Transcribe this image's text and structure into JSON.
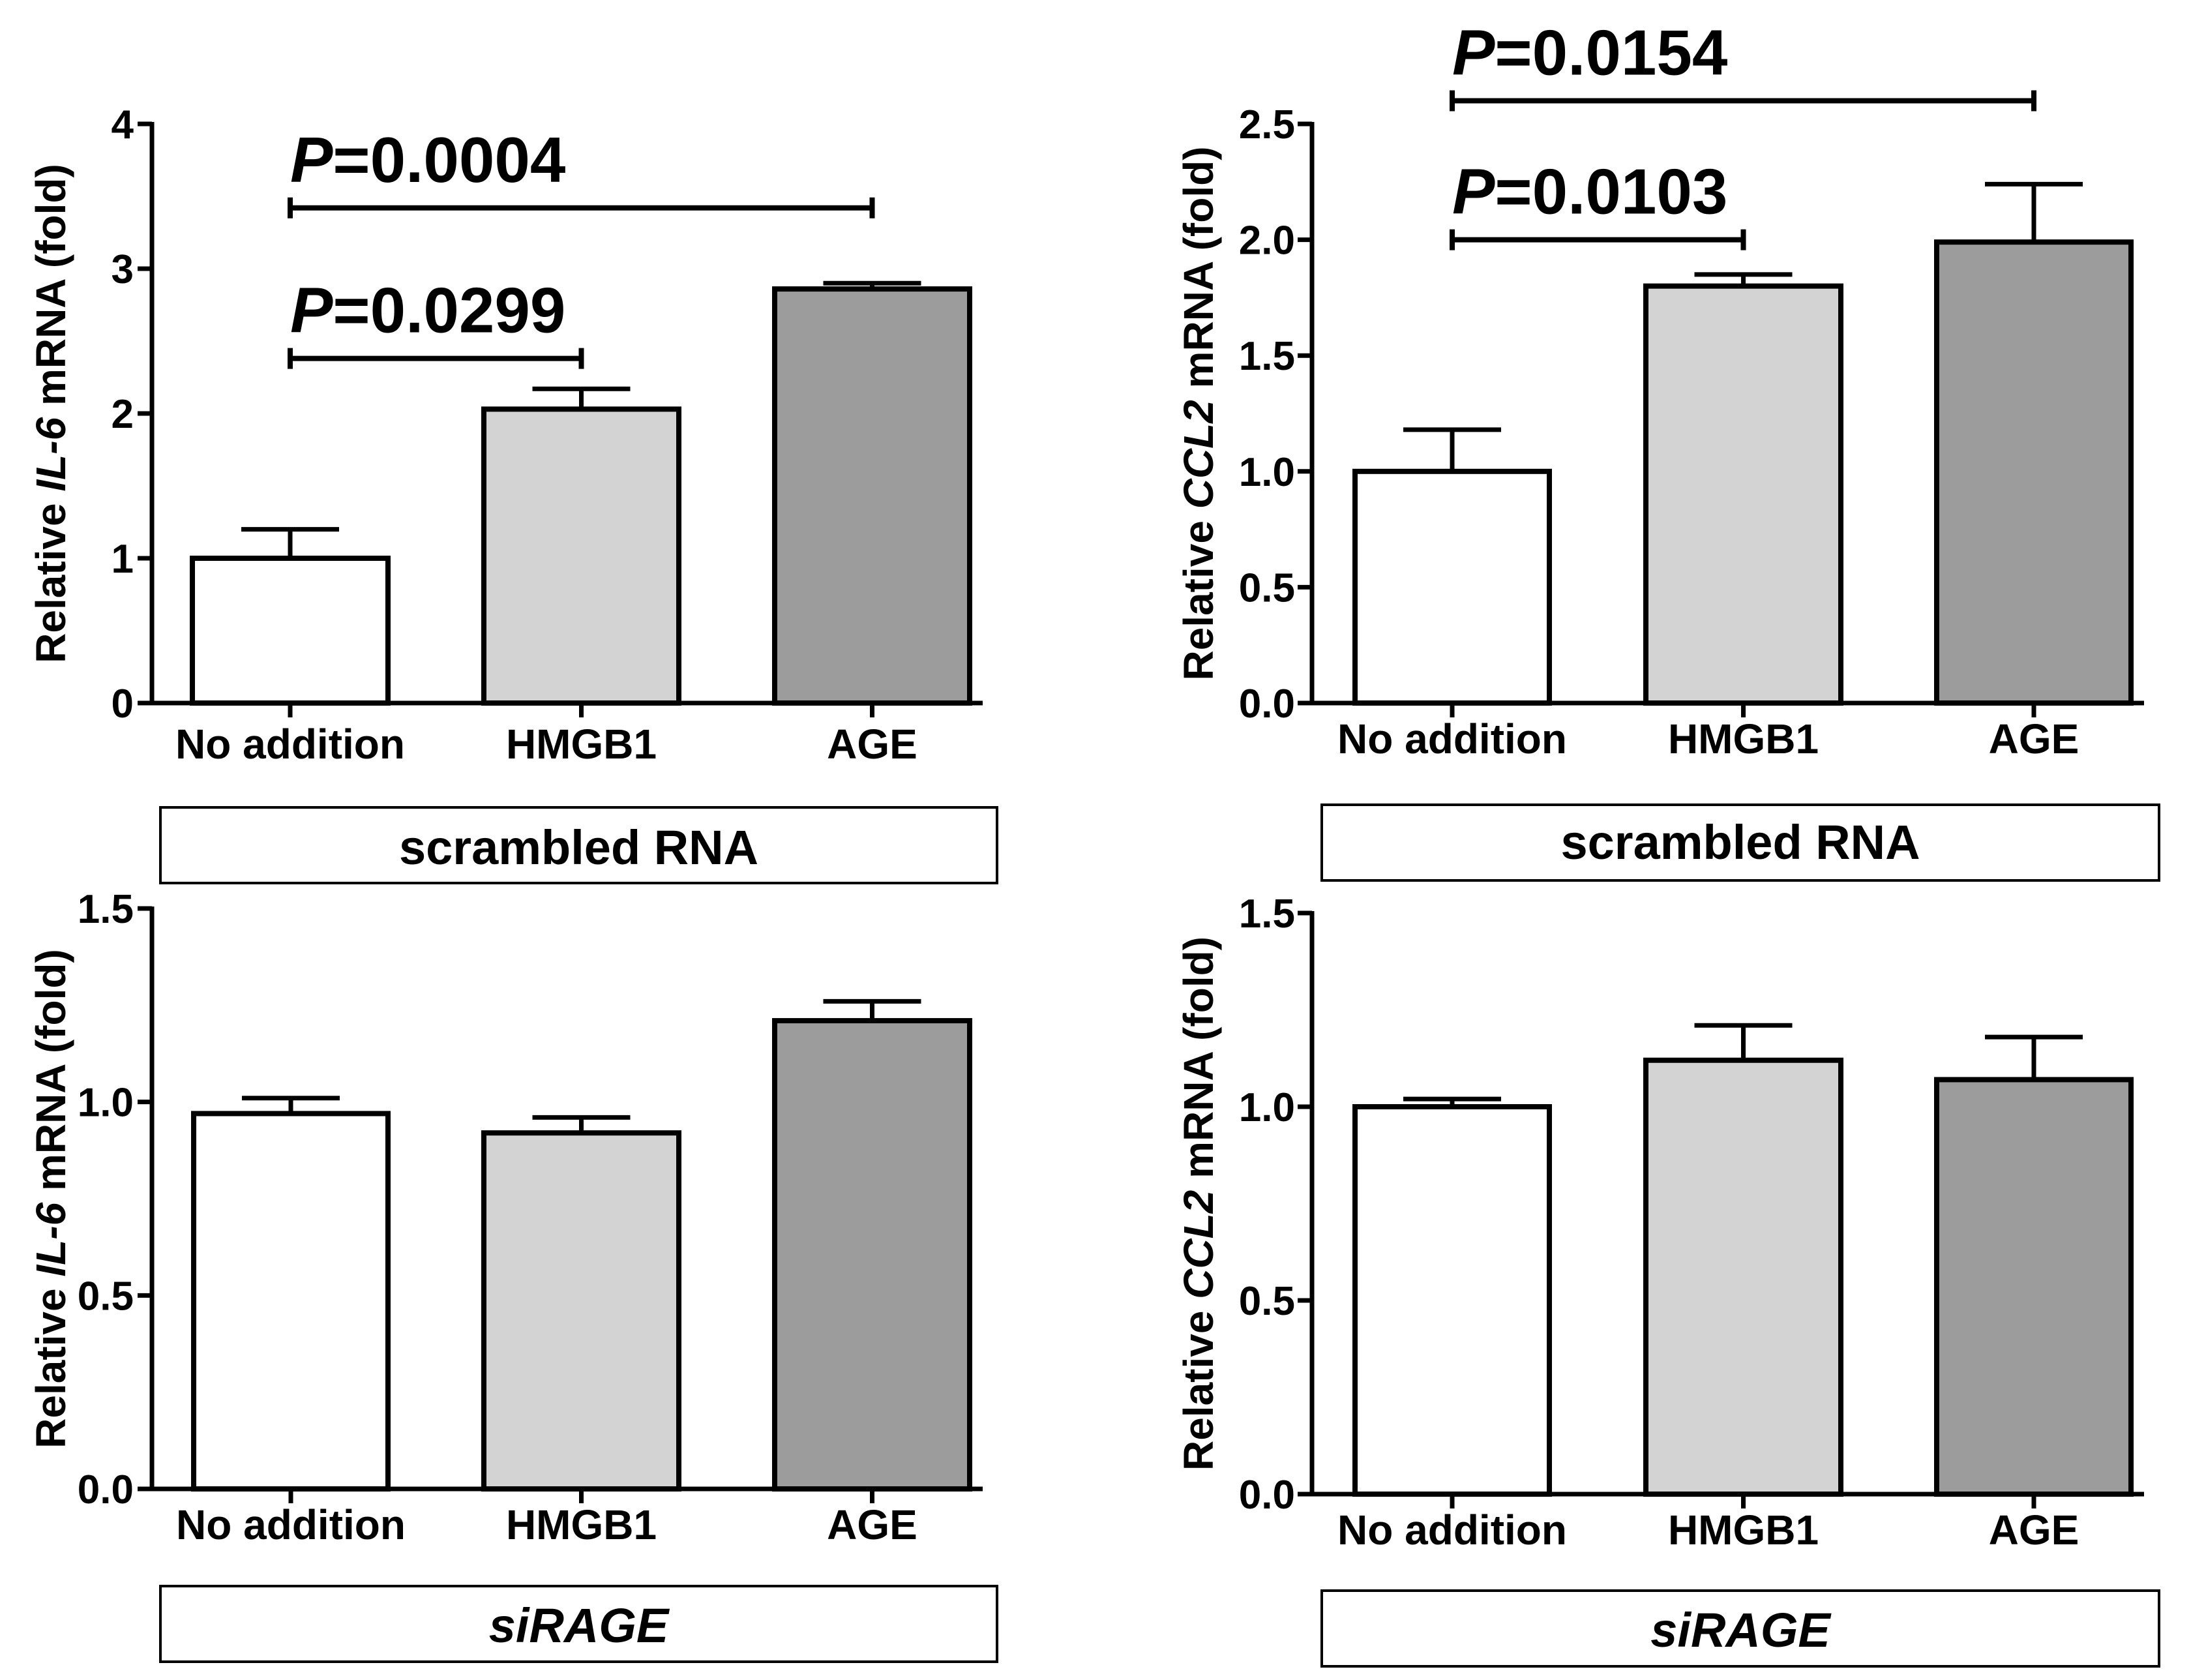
{
  "colors": {
    "no_addition": "#ffffff",
    "hmgb1": "#d3d3d3",
    "age": "#9c9c9c",
    "stroke": "#000000",
    "background": "#ffffff"
  },
  "chart_data": [
    {
      "type": "bar",
      "panel": "top-left",
      "categories": [
        "No addition",
        "HMGB1",
        "AGE"
      ],
      "values": [
        1.0,
        2.03,
        2.86
      ],
      "errors": [
        0.2,
        0.14,
        0.04
      ],
      "ylabel_prefix": "Relative ",
      "ylabel_gene": "IL-6",
      "ylabel_suffix": " mRNA (fold)",
      "ylim": [
        0,
        4
      ],
      "yticks": [
        "0",
        "1",
        "2",
        "3",
        "4"
      ],
      "yticks_values": [
        0,
        1,
        2,
        3,
        4
      ],
      "condition_label": "scrambled RNA",
      "condition_italic": false,
      "significance": [
        {
          "from": 0,
          "to": 1,
          "y": 2.38,
          "p_letter": "P",
          "p_value": "=0.0299"
        },
        {
          "from": 0,
          "to": 2,
          "y": 3.42,
          "p_letter": "P",
          "p_value": "=0.0004"
        }
      ]
    },
    {
      "type": "bar",
      "panel": "top-right",
      "categories": [
        "No addition",
        "HMGB1",
        "AGE"
      ],
      "values": [
        1.0,
        1.8,
        1.99
      ],
      "errors": [
        0.18,
        0.05,
        0.25
      ],
      "ylabel_prefix": "Relative ",
      "ylabel_gene": "CCL2",
      "ylabel_suffix": " mRNA (fold)",
      "ylim": [
        0,
        2.5
      ],
      "yticks": [
        "0.0",
        "0.5",
        "1.0",
        "1.5",
        "2.0",
        "2.5"
      ],
      "yticks_values": [
        0,
        0.5,
        1.0,
        1.5,
        2.0,
        2.5
      ],
      "condition_label": "scrambled RNA",
      "condition_italic": false,
      "significance": [
        {
          "from": 0,
          "to": 1,
          "y": 2.0,
          "p_letter": "P",
          "p_value": "=0.0103"
        },
        {
          "from": 0,
          "to": 2,
          "y": 2.6,
          "p_letter": "P",
          "p_value": "=0.0154"
        }
      ]
    },
    {
      "type": "bar",
      "panel": "bottom-left",
      "categories": [
        "No addition",
        "HMGB1",
        "AGE"
      ],
      "values": [
        0.97,
        0.92,
        1.21
      ],
      "errors": [
        0.04,
        0.04,
        0.05
      ],
      "ylabel_prefix": "Relative ",
      "ylabel_gene": "IL-6",
      "ylabel_suffix": " mRNA (fold)",
      "ylim": [
        0,
        1.5
      ],
      "yticks": [
        "0.0",
        "0.5",
        "1.0",
        "1.5"
      ],
      "yticks_values": [
        0,
        0.5,
        1.0,
        1.5
      ],
      "condition_label": "siRAGE",
      "condition_italic": true,
      "significance": []
    },
    {
      "type": "bar",
      "panel": "bottom-right",
      "categories": [
        "No addition",
        "HMGB1",
        "AGE"
      ],
      "values": [
        1.0,
        1.12,
        1.07
      ],
      "errors": [
        0.02,
        0.09,
        0.11
      ],
      "ylabel_prefix": "Relative ",
      "ylabel_gene": "CCL2",
      "ylabel_suffix": " mRNA (fold)",
      "ylim": [
        0,
        1.5
      ],
      "yticks": [
        "0.0",
        "0.5",
        "1.0",
        "1.5"
      ],
      "yticks_values": [
        0,
        0.5,
        1.0,
        1.5
      ],
      "condition_label": "siRAGE",
      "condition_italic": true,
      "significance": []
    }
  ]
}
